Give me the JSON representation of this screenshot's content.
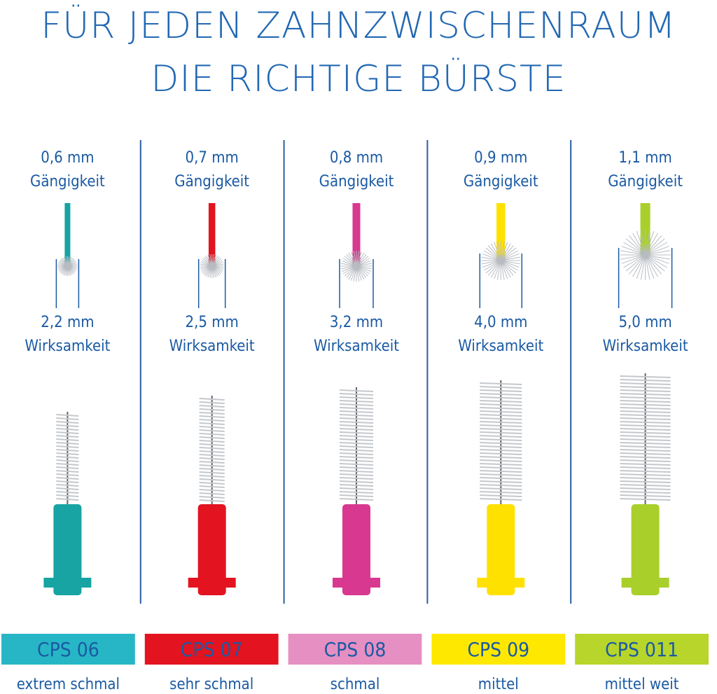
{
  "header": {
    "title_line1": "FÜR JEDEN ZAHNZWISCHENRAUM",
    "title_line2": "DIE RICHTIGE BÜRSTE"
  },
  "columns": [
    {
      "passage": "0,6 mm",
      "passage_label": "Gängigkeit",
      "efficacy": "2,2 mm",
      "efficacy_label": "Wirksamkeit",
      "code": "CPS 06",
      "size": "extrem schmal",
      "color": "#17a4a3",
      "box_color": "#27b6c6"
    },
    {
      "passage": "0,7 mm",
      "passage_label": "Gängigkeit",
      "efficacy": "2,5 mm",
      "efficacy_label": "Wirksamkeit",
      "code": "CPS 07",
      "size": "sehr schmal",
      "color": "#e3131f",
      "box_color": "#e3131f"
    },
    {
      "passage": "0,8 mm",
      "passage_label": "Gängigkeit",
      "efficacy": "3,2 mm",
      "efficacy_label": "Wirksamkeit",
      "code": "CPS 08",
      "size": "schmal",
      "color": "#d8388f",
      "box_color": "#e68fc2"
    },
    {
      "passage": "0,9 mm",
      "passage_label": "Gängigkeit",
      "efficacy": "4,0 mm",
      "efficacy_label": "Wirksamkeit",
      "code": "CPS 09",
      "size": "mittel",
      "color": "#ffe100",
      "box_color": "#ffe800"
    },
    {
      "passage": "1,1 mm",
      "passage_label": "Gängigkeit",
      "efficacy": "5,0 mm",
      "efficacy_label": "Wirksamkeit",
      "code": "CPS 011",
      "size": "mittel weit",
      "color": "#a9cf2a",
      "box_color": "#b7d52b"
    }
  ]
}
